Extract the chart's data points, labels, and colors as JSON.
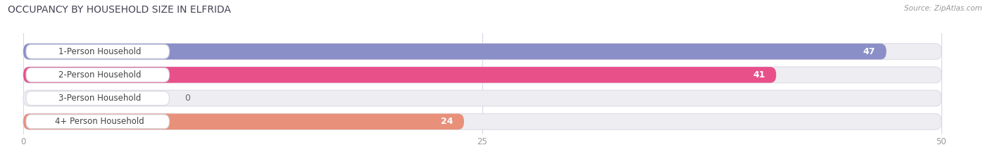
{
  "title": "OCCUPANCY BY HOUSEHOLD SIZE IN ELFRIDA",
  "source": "Source: ZipAtlas.com",
  "categories": [
    "1-Person Household",
    "2-Person Household",
    "3-Person Household",
    "4+ Person Household"
  ],
  "values": [
    47,
    41,
    0,
    24
  ],
  "bar_colors": [
    "#8b8fc8",
    "#e8508a",
    "#f0c080",
    "#e8907a"
  ],
  "background_color": "#ffffff",
  "bar_bg_color": "#ededf2",
  "bar_bg_outline": "#e0e0e8",
  "xlim": [
    0,
    50
  ],
  "xticks": [
    0,
    25,
    50
  ],
  "title_fontsize": 10,
  "label_fontsize": 8.5,
  "value_fontsize": 9
}
